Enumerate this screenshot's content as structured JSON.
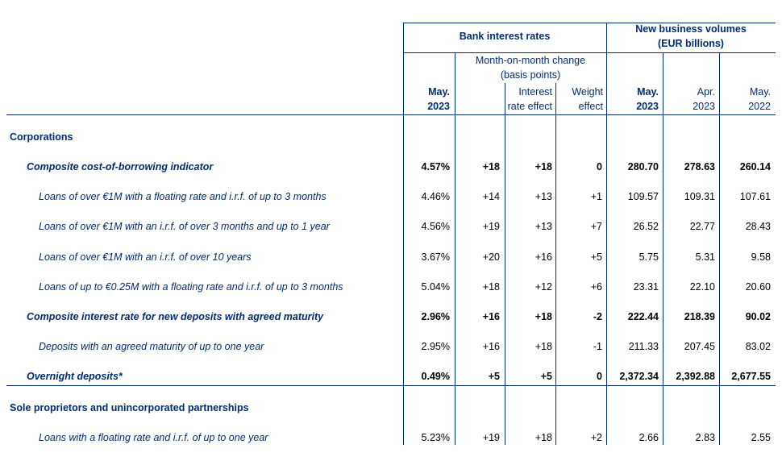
{
  "header": {
    "bank_interest_rates": "Bank interest rates",
    "new_business_volumes": [
      "New business volumes",
      "(EUR billions)"
    ],
    "mom_change": [
      "Month-on-month change",
      "(basis points)"
    ],
    "col_rate_may2023": [
      "May.",
      "2023"
    ],
    "col_irf": [
      "Interest",
      "rate effect"
    ],
    "col_weight": [
      "Weight",
      "effect"
    ],
    "col_vol_may2023": [
      "May.",
      "2023"
    ],
    "col_vol_apr2023": [
      "Apr.",
      "2023"
    ],
    "col_vol_may2022": [
      "May.",
      "2022"
    ]
  },
  "rows": [
    {
      "type": "section",
      "label": "Corporations",
      "cells": [
        "",
        "",
        "",
        "",
        "",
        "",
        ""
      ]
    },
    {
      "type": "bold",
      "label": "Composite cost-of-borrowing indicator",
      "cells": [
        "4.57%",
        "+18",
        "+18",
        "0",
        "280.70",
        "278.63",
        "260.14"
      ]
    },
    {
      "type": "sub",
      "label": "Loans of over €1M with a floating rate and i.r.f. of up to 3 months",
      "cells": [
        "4.46%",
        "+14",
        "+13",
        "+1",
        "109.57",
        "109.31",
        "107.61"
      ]
    },
    {
      "type": "sub",
      "label": "Loans of over €1M with an i.r.f. of over 3 months and up to 1 year",
      "cells": [
        "4.56%",
        "+19",
        "+13",
        "+7",
        "26.52",
        "22.77",
        "28.43"
      ]
    },
    {
      "type": "sub",
      "label": "Loans of over €1M with an i.r.f. of over 10 years",
      "cells": [
        "3.67%",
        "+20",
        "+16",
        "+5",
        "5.75",
        "5.31",
        "9.58"
      ]
    },
    {
      "type": "sub",
      "label": "Loans of up to €0.25M with a floating rate and i.r.f. of up to 3 months",
      "cells": [
        "5.04%",
        "+18",
        "+12",
        "+6",
        "23.31",
        "22.10",
        "20.60"
      ]
    },
    {
      "type": "bold",
      "label": "Composite interest rate for new deposits with agreed maturity",
      "cells": [
        "2.96%",
        "+16",
        "+18",
        "-2",
        "222.44",
        "218.39",
        "90.02"
      ]
    },
    {
      "type": "sub",
      "label": "Deposits with an agreed maturity of up to one year",
      "cells": [
        "2.95%",
        "+16",
        "+18",
        "-1",
        "211.33",
        "207.45",
        "83.02"
      ]
    },
    {
      "type": "bold",
      "label": "Overnight deposits*",
      "cells": [
        "0.49%",
        "+5",
        "+5",
        "0",
        "2,372.34",
        "2,392.88",
        "2,677.55"
      ]
    },
    {
      "type": "section",
      "label": "Sole proprietors and unincorporated partnerships",
      "cells": [
        "",
        "",
        "",
        "",
        "",
        "",
        ""
      ]
    },
    {
      "type": "sub",
      "label": "Loans with a floating rate and i.r.f. of up to one year",
      "cells": [
        "5.23%",
        "+19",
        "+18",
        "+2",
        "2.66",
        "2.83",
        "2.55"
      ]
    }
  ]
}
